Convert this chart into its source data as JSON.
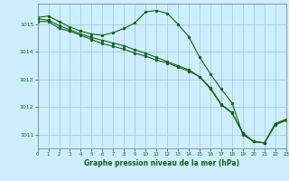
{
  "title": "Graphe pression niveau de la mer (hPa)",
  "background_color": "#cceeff",
  "grid_color": "#99cccc",
  "line_color": "#1a5c1a",
  "marker_color": "#1a5c1a",
  "xlim": [
    0,
    23
  ],
  "ylim": [
    1010.5,
    1015.75
  ],
  "yticks": [
    1011,
    1012,
    1013,
    1014,
    1015
  ],
  "xticks": [
    0,
    1,
    2,
    3,
    4,
    5,
    6,
    7,
    8,
    9,
    10,
    11,
    12,
    13,
    14,
    15,
    16,
    17,
    18,
    19,
    20,
    21,
    22,
    23
  ],
  "series1": [
    1015.25,
    1015.3,
    1015.1,
    1014.9,
    1014.75,
    1014.65,
    1014.6,
    1014.7,
    1014.85,
    1015.05,
    1015.45,
    1015.5,
    1015.4,
    1015.0,
    1014.55,
    1013.8,
    1013.2,
    1012.65,
    1012.15,
    1011.0,
    1010.75,
    1010.7,
    1011.4,
    1011.55
  ],
  "series2": [
    1015.1,
    1015.1,
    1014.85,
    1014.75,
    1014.6,
    1014.45,
    1014.3,
    1014.2,
    1014.1,
    1013.95,
    1013.85,
    1013.7,
    1013.6,
    1013.45,
    1013.3,
    1013.1,
    1012.7,
    1012.1,
    1011.8,
    1011.05,
    1010.75,
    1010.7,
    1011.4,
    1011.55
  ],
  "series3": [
    1015.2,
    1015.15,
    1014.95,
    1014.8,
    1014.65,
    1014.52,
    1014.42,
    1014.32,
    1014.22,
    1014.08,
    1013.95,
    1013.8,
    1013.65,
    1013.5,
    1013.35,
    1013.1,
    1012.65,
    1012.08,
    1011.78,
    1011.05,
    1010.75,
    1010.7,
    1011.35,
    1011.52
  ]
}
